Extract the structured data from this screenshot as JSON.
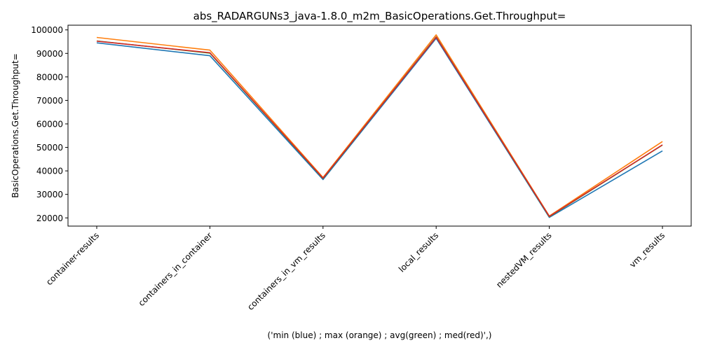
{
  "chart_data": {
    "type": "line",
    "title": "abs_RADARGUNs3_java-1.8.0_m2m_BasicOperations.Get.Throughput=",
    "xlabel": "('min (blue) ; max (orange) ; avg(green) ; med(red)',)",
    "ylabel": "BasicOperations.Get.Throughput=",
    "categories": [
      "container-results",
      "containers_in_container",
      "containers_in_vm_results",
      "local_results",
      "nestedVM_results",
      "vm_results"
    ],
    "ylim": [
      16500,
      102000
    ],
    "yticks": [
      20000,
      30000,
      40000,
      50000,
      60000,
      70000,
      80000,
      90000,
      100000
    ],
    "ytick_labels": [
      "20000",
      "30000",
      "40000",
      "50000",
      "60000",
      "70000",
      "80000",
      "90000",
      "100000"
    ],
    "grid": false,
    "legend": "none",
    "series": [
      {
        "color": "#1f77b4",
        "values": [
          94500,
          89000,
          36300,
          96400,
          20200,
          48500
        ]
      },
      {
        "color": "#ff7f0e",
        "values": [
          96800,
          91400,
          37200,
          97900,
          20800,
          52500
        ]
      },
      {
        "color": "#2ca02c",
        "values": [
          95300,
          90100,
          36800,
          97000,
          20500,
          51000
        ]
      },
      {
        "color": "#d62728",
        "values": [
          95200,
          90300,
          36900,
          96900,
          20600,
          51100
        ]
      }
    ]
  }
}
